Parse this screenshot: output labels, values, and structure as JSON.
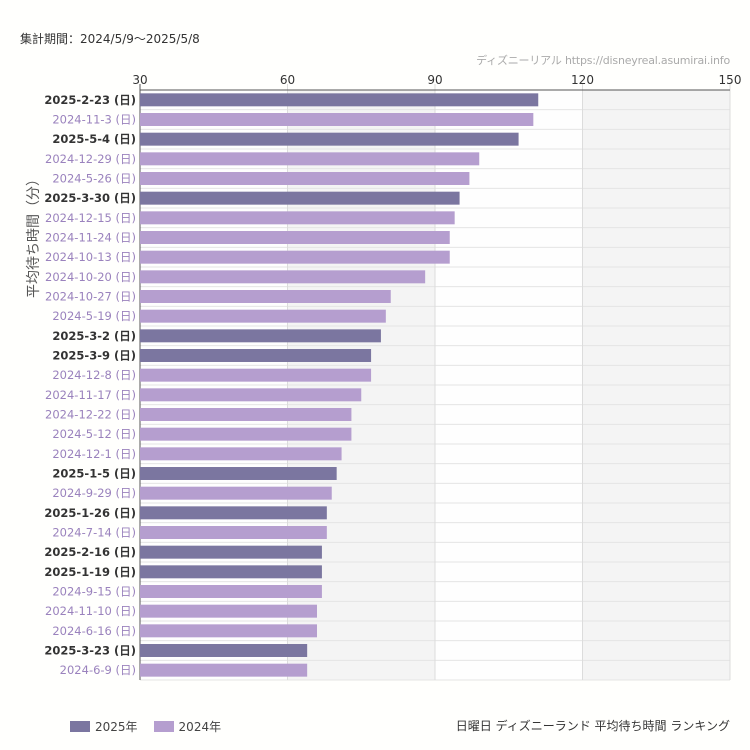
{
  "header": {
    "period": "集計期間：2024/5/9〜2025/5/8",
    "source": "ディズニーリアル https://disneyreal.asumirai.info"
  },
  "footer": {
    "title": "日曜日 ディズニーランド 平均待ち時間 ランキング"
  },
  "chart_data": {
    "type": "bar",
    "orientation": "horizontal",
    "ylabel": "平均待ち時間（分）",
    "xlim": [
      30,
      150
    ],
    "x_ticks": [
      30,
      60,
      90,
      120,
      150
    ],
    "grid": true,
    "legend_position": "bottom-left",
    "series": [
      {
        "name": "2025年",
        "color": "#7b76a0"
      },
      {
        "name": "2024年",
        "color": "#b59ecf"
      }
    ],
    "label_colors": {
      "2025年": "#333333",
      "2024年": "#9a82bd"
    },
    "bars": [
      {
        "label": "2025-2-23 (日)",
        "value": 111,
        "series": "2025年"
      },
      {
        "label": "2024-11-3 (日)",
        "value": 110,
        "series": "2024年"
      },
      {
        "label": "2025-5-4 (日)",
        "value": 107,
        "series": "2025年"
      },
      {
        "label": "2024-12-29 (日)",
        "value": 99,
        "series": "2024年"
      },
      {
        "label": "2024-5-26 (日)",
        "value": 97,
        "series": "2024年"
      },
      {
        "label": "2025-3-30 (日)",
        "value": 95,
        "series": "2025年"
      },
      {
        "label": "2024-12-15 (日)",
        "value": 94,
        "series": "2024年"
      },
      {
        "label": "2024-11-24 (日)",
        "value": 93,
        "series": "2024年"
      },
      {
        "label": "2024-10-13 (日)",
        "value": 93,
        "series": "2024年"
      },
      {
        "label": "2024-10-20 (日)",
        "value": 88,
        "series": "2024年"
      },
      {
        "label": "2024-10-27 (日)",
        "value": 81,
        "series": "2024年"
      },
      {
        "label": "2024-5-19 (日)",
        "value": 80,
        "series": "2024年"
      },
      {
        "label": "2025-3-2 (日)",
        "value": 79,
        "series": "2025年"
      },
      {
        "label": "2025-3-9 (日)",
        "value": 77,
        "series": "2025年"
      },
      {
        "label": "2024-12-8 (日)",
        "value": 77,
        "series": "2024年"
      },
      {
        "label": "2024-11-17 (日)",
        "value": 75,
        "series": "2024年"
      },
      {
        "label": "2024-12-22 (日)",
        "value": 73,
        "series": "2024年"
      },
      {
        "label": "2024-5-12 (日)",
        "value": 73,
        "series": "2024年"
      },
      {
        "label": "2024-12-1 (日)",
        "value": 71,
        "series": "2024年"
      },
      {
        "label": "2025-1-5 (日)",
        "value": 70,
        "series": "2025年"
      },
      {
        "label": "2024-9-29 (日)",
        "value": 69,
        "series": "2024年"
      },
      {
        "label": "2025-1-26 (日)",
        "value": 68,
        "series": "2025年"
      },
      {
        "label": "2024-7-14 (日)",
        "value": 68,
        "series": "2024年"
      },
      {
        "label": "2025-2-16 (日)",
        "value": 67,
        "series": "2025年"
      },
      {
        "label": "2025-1-19 (日)",
        "value": 67,
        "series": "2025年"
      },
      {
        "label": "2024-9-15 (日)",
        "value": 67,
        "series": "2024年"
      },
      {
        "label": "2024-11-10 (日)",
        "value": 66,
        "series": "2024年"
      },
      {
        "label": "2024-6-16 (日)",
        "value": 66,
        "series": "2024年"
      },
      {
        "label": "2025-3-23 (日)",
        "value": 64,
        "series": "2025年"
      },
      {
        "label": "2024-6-9 (日)",
        "value": 64,
        "series": "2024年"
      }
    ]
  }
}
